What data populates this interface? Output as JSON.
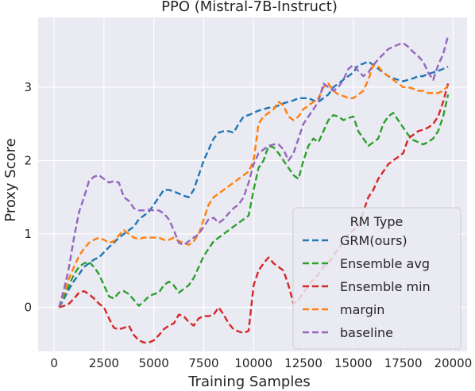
{
  "chart_data": {
    "type": "line",
    "title": "PPO (Mistral-7B-Instruct)",
    "xlabel": "Training Samples",
    "ylabel": "Proxy Score",
    "xlim": [
      -800,
      20700
    ],
    "ylim": [
      -0.6,
      3.95
    ],
    "xticks": [
      0,
      2500,
      5000,
      7500,
      10000,
      12500,
      15000,
      17500,
      20000
    ],
    "yticks": [
      0,
      1,
      2,
      3
    ],
    "grid": true,
    "legend": {
      "title": "RM Type",
      "placement": "lower-right"
    },
    "series": [
      {
        "name": "GRM(ours)",
        "color": "#1f77b4",
        "x": [
          250,
          500,
          750,
          1000,
          1250,
          1500,
          1750,
          2000,
          2250,
          2500,
          2750,
          3000,
          3250,
          3500,
          3750,
          4000,
          4250,
          4500,
          4750,
          5000,
          5250,
          5500,
          5750,
          6000,
          6250,
          6500,
          6750,
          7000,
          7250,
          7500,
          7750,
          8000,
          8250,
          8500,
          8750,
          9000,
          9250,
          9500,
          9750,
          10000,
          10250,
          10500,
          10750,
          11000,
          11250,
          11500,
          11750,
          12000,
          12250,
          12500,
          12750,
          13000,
          13250,
          13500,
          13750,
          14000,
          14250,
          14500,
          14750,
          15000,
          15250,
          15500,
          15750,
          16000,
          16250,
          16500,
          16750,
          17000,
          17250,
          17500,
          17750,
          18000,
          18250,
          18500,
          18750,
          19000,
          19250,
          19500,
          19750
        ],
        "y": [
          0,
          0.12,
          0.25,
          0.36,
          0.45,
          0.55,
          0.6,
          0.65,
          0.68,
          0.75,
          0.82,
          0.88,
          0.95,
          1.0,
          1.05,
          1.1,
          1.2,
          1.25,
          1.3,
          1.4,
          1.5,
          1.6,
          1.6,
          1.58,
          1.55,
          1.52,
          1.5,
          1.6,
          1.8,
          2.0,
          2.15,
          2.3,
          2.38,
          2.4,
          2.4,
          2.38,
          2.5,
          2.6,
          2.62,
          2.65,
          2.68,
          2.7,
          2.72,
          2.72,
          2.75,
          2.78,
          2.8,
          2.82,
          2.85,
          2.85,
          2.85,
          2.82,
          2.8,
          2.85,
          2.9,
          3.0,
          3.05,
          3.1,
          3.15,
          3.2,
          3.3,
          3.32,
          3.35,
          3.3,
          3.25,
          3.2,
          3.15,
          3.12,
          3.1,
          3.08,
          3.1,
          3.12,
          3.15,
          3.15,
          3.18,
          3.2,
          3.22,
          3.25,
          3.28
        ]
      },
      {
        "name": "Ensemble avg",
        "color": "#2ca02c",
        "x": [
          250,
          500,
          750,
          1000,
          1250,
          1500,
          1750,
          2000,
          2250,
          2500,
          2750,
          3000,
          3250,
          3500,
          3750,
          4000,
          4250,
          4500,
          4750,
          5000,
          5250,
          5500,
          5750,
          6000,
          6250,
          6500,
          6750,
          7000,
          7250,
          7500,
          7750,
          8000,
          8250,
          8500,
          8750,
          9000,
          9250,
          9500,
          9750,
          10000,
          10250,
          10500,
          10750,
          11000,
          11250,
          11500,
          11750,
          12000,
          12250,
          12500,
          12750,
          13000,
          13250,
          13500,
          13750,
          14000,
          14250,
          14500,
          14750,
          15000,
          15250,
          15500,
          15750,
          16000,
          16250,
          16500,
          16750,
          17000,
          17250,
          17500,
          17750,
          18000,
          18250,
          18500,
          18750,
          19000,
          19250,
          19500,
          19750
        ],
        "y": [
          0,
          0.15,
          0.3,
          0.45,
          0.55,
          0.6,
          0.62,
          0.55,
          0.45,
          0.3,
          0.15,
          0.12,
          0.2,
          0.22,
          0.18,
          0.1,
          0.02,
          0.08,
          0.15,
          0.18,
          0.2,
          0.3,
          0.35,
          0.3,
          0.2,
          0.25,
          0.3,
          0.4,
          0.55,
          0.7,
          0.8,
          0.9,
          0.95,
          1.0,
          1.05,
          1.1,
          1.15,
          1.2,
          1.25,
          1.6,
          1.9,
          2.0,
          2.2,
          2.18,
          2.1,
          2.0,
          1.9,
          1.8,
          1.75,
          2.0,
          2.2,
          2.3,
          2.25,
          2.4,
          2.55,
          2.62,
          2.6,
          2.55,
          2.58,
          2.6,
          2.4,
          2.3,
          2.2,
          2.25,
          2.3,
          2.5,
          2.6,
          2.65,
          2.55,
          2.45,
          2.35,
          2.28,
          2.25,
          2.22,
          2.25,
          2.3,
          2.4,
          2.6,
          2.9
        ]
      },
      {
        "name": "Ensemble min",
        "color": "#d62728",
        "x": [
          250,
          500,
          750,
          1000,
          1250,
          1500,
          1750,
          2000,
          2250,
          2500,
          2750,
          3000,
          3250,
          3500,
          3750,
          4000,
          4250,
          4500,
          4750,
          5000,
          5250,
          5500,
          5750,
          6000,
          6250,
          6500,
          6750,
          7000,
          7250,
          7500,
          7750,
          8000,
          8250,
          8500,
          8750,
          9000,
          9250,
          9500,
          9750,
          10000,
          10250,
          10500,
          10750,
          11000,
          11250,
          11500,
          11750,
          12000,
          12250,
          12500,
          12750,
          13000,
          13250,
          13500,
          13750,
          14000,
          14250,
          14500,
          14750,
          15000,
          15250,
          15500,
          15750,
          16000,
          16250,
          16500,
          16750,
          17000,
          17250,
          17500,
          17750,
          18000,
          18250,
          18500,
          18750,
          19000,
          19250,
          19500,
          19750
        ],
        "y": [
          0,
          0.02,
          0.05,
          0.12,
          0.2,
          0.22,
          0.18,
          0.12,
          0.05,
          0.0,
          -0.15,
          -0.28,
          -0.3,
          -0.28,
          -0.25,
          -0.38,
          -0.45,
          -0.48,
          -0.48,
          -0.45,
          -0.38,
          -0.3,
          -0.25,
          -0.22,
          -0.1,
          -0.12,
          -0.2,
          -0.25,
          -0.15,
          -0.12,
          -0.12,
          -0.1,
          0.0,
          -0.1,
          -0.22,
          -0.3,
          -0.33,
          -0.35,
          -0.32,
          0.3,
          0.5,
          0.6,
          0.68,
          0.6,
          0.55,
          0.5,
          0.3,
          0.05,
          0.1,
          0.2,
          0.3,
          0.38,
          0.45,
          0.55,
          0.6,
          0.7,
          0.8,
          0.9,
          1.0,
          1.05,
          1.1,
          1.3,
          1.5,
          1.6,
          1.75,
          1.85,
          1.95,
          2.0,
          2.05,
          2.1,
          2.3,
          2.35,
          2.4,
          2.42,
          2.45,
          2.5,
          2.6,
          2.8,
          3.05
        ]
      },
      {
        "name": "margin",
        "color": "#ff7f0e",
        "x": [
          250,
          500,
          750,
          1000,
          1250,
          1500,
          1750,
          2000,
          2250,
          2500,
          2750,
          3000,
          3250,
          3500,
          3750,
          4000,
          4250,
          4500,
          4750,
          5000,
          5250,
          5500,
          5750,
          6000,
          6250,
          6500,
          6750,
          7000,
          7250,
          7500,
          7750,
          8000,
          8250,
          8500,
          8750,
          9000,
          9250,
          9500,
          9750,
          10000,
          10250,
          10500,
          10750,
          11000,
          11250,
          11500,
          11750,
          12000,
          12250,
          12500,
          12750,
          13000,
          13250,
          13500,
          13750,
          14000,
          14250,
          14500,
          14750,
          15000,
          15250,
          15500,
          15750,
          16000,
          16250,
          16500,
          16750,
          17000,
          17250,
          17500,
          17750,
          18000,
          18250,
          18500,
          18750,
          19000,
          19250,
          19500,
          19750
        ],
        "y": [
          0,
          0.2,
          0.4,
          0.55,
          0.7,
          0.8,
          0.88,
          0.92,
          0.95,
          0.92,
          0.88,
          0.9,
          0.98,
          1.05,
          1.0,
          0.95,
          0.93,
          0.95,
          0.95,
          0.95,
          0.95,
          0.92,
          0.92,
          0.95,
          0.9,
          0.88,
          0.85,
          0.9,
          1.0,
          1.2,
          1.4,
          1.5,
          1.55,
          1.6,
          1.65,
          1.7,
          1.75,
          1.8,
          1.85,
          2.0,
          2.5,
          2.6,
          2.65,
          2.7,
          2.8,
          2.75,
          2.6,
          2.55,
          2.6,
          2.7,
          2.75,
          2.8,
          2.85,
          3.0,
          3.05,
          2.95,
          2.9,
          2.88,
          2.85,
          2.85,
          2.9,
          2.95,
          3.1,
          3.3,
          3.28,
          3.2,
          3.15,
          3.1,
          3.05,
          3.0,
          3.0,
          2.98,
          2.95,
          2.95,
          2.92,
          2.92,
          2.92,
          2.95,
          3.02
        ]
      },
      {
        "name": "baseline",
        "color": "#9467bd",
        "x": [
          250,
          500,
          750,
          1000,
          1250,
          1500,
          1750,
          2000,
          2250,
          2500,
          2750,
          3000,
          3250,
          3500,
          3750,
          4000,
          4250,
          4500,
          4750,
          5000,
          5250,
          5500,
          5750,
          6000,
          6250,
          6500,
          6750,
          7000,
          7250,
          7500,
          7750,
          8000,
          8250,
          8500,
          8750,
          9000,
          9250,
          9500,
          9750,
          10000,
          10250,
          10500,
          10750,
          11000,
          11250,
          11500,
          11750,
          12000,
          12250,
          12500,
          12750,
          13000,
          13250,
          13500,
          13750,
          14000,
          14250,
          14500,
          14750,
          15000,
          15250,
          15500,
          15750,
          16000,
          16250,
          16500,
          16750,
          17000,
          17250,
          17500,
          17750,
          18000,
          18250,
          18500,
          18750,
          19000,
          19250,
          19500,
          19750
        ],
        "y": [
          0,
          0.25,
          0.55,
          0.95,
          1.3,
          1.5,
          1.72,
          1.78,
          1.8,
          1.75,
          1.7,
          1.72,
          1.7,
          1.5,
          1.45,
          1.35,
          1.32,
          1.32,
          1.33,
          1.32,
          1.32,
          1.28,
          1.2,
          1.05,
          0.88,
          0.85,
          0.9,
          0.95,
          1.0,
          1.1,
          1.2,
          1.22,
          1.15,
          1.2,
          1.28,
          1.35,
          1.4,
          1.5,
          1.7,
          1.95,
          2.1,
          2.15,
          2.2,
          2.22,
          2.22,
          2.15,
          2.0,
          2.1,
          2.3,
          2.5,
          2.6,
          2.7,
          2.8,
          3.05,
          3.0,
          2.95,
          3.0,
          3.1,
          3.25,
          3.3,
          3.22,
          3.15,
          3.2,
          3.3,
          3.38,
          3.45,
          3.52,
          3.55,
          3.58,
          3.6,
          3.55,
          3.48,
          3.42,
          3.35,
          3.2,
          3.1,
          3.3,
          3.45,
          3.7
        ]
      }
    ]
  }
}
